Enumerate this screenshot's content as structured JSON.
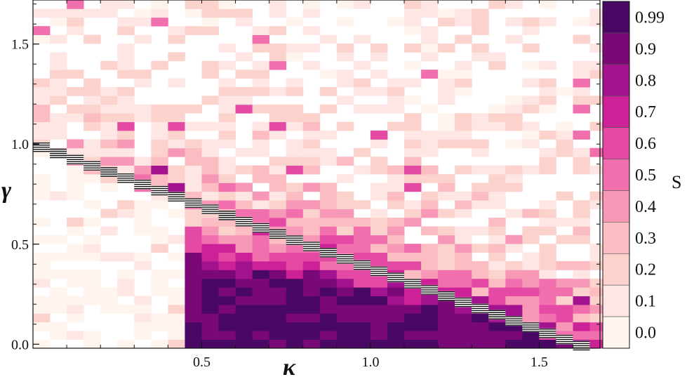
{
  "chart_data": {
    "type": "heatmap",
    "title": "",
    "xlabel": "κ",
    "ylabel": "γ",
    "xlim": [
      0.0,
      1.68
    ],
    "ylim": [
      -0.02,
      1.72
    ],
    "xticks": [
      {
        "value": 0.5,
        "label": "0.5"
      },
      {
        "value": 1.0,
        "label": "1.0"
      },
      {
        "value": 1.5,
        "label": "1.5"
      }
    ],
    "yticks": [
      {
        "value": 0.0,
        "label": "0.0"
      },
      {
        "value": 0.5,
        "label": "0.5"
      },
      {
        "value": 1.0,
        "label": "1.0"
      },
      {
        "value": 1.5,
        "label": "1.5"
      }
    ],
    "grid": {
      "x_start": 0.0,
      "x_step": 0.05,
      "nx": 34,
      "y_start": -0.02,
      "y_step": 0.0435,
      "ny": 40
    },
    "regions": [
      {
        "description": "upper-left noisy low-S region",
        "approx_S": "0.0-0.3"
      },
      {
        "description": "diagonal band boundary",
        "approx_S": "0.6-0.9"
      },
      {
        "description": "lower-right saturated region",
        "approx_S": "0.99"
      }
    ],
    "boundary_line": "gamma = 1 - 0.62*kappa (approx.)",
    "colorbar": {
      "title": "S",
      "levels": [
        "0.0",
        "0.1",
        "0.2",
        "0.3",
        "0.4",
        "0.5",
        "0.6",
        "0.7",
        "0.8",
        "0.9",
        "0.99"
      ],
      "colors": [
        "#fff5ee",
        "#fde6e4",
        "#fcd2cd",
        "#fbbcc2",
        "#f798b7",
        "#f26fad",
        "#e44aa3",
        "#cc2197",
        "#a4138f",
        "#7a0977",
        "#4a0865"
      ]
    }
  }
}
